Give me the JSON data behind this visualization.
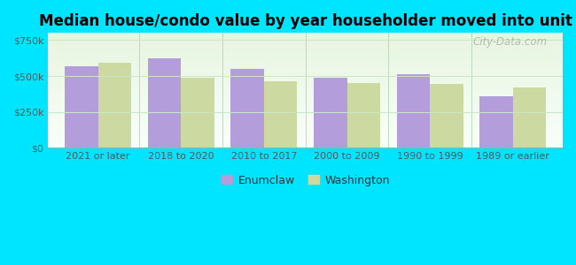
{
  "title": "Median house/condo value by year householder moved into unit",
  "categories": [
    "2021 or later",
    "2018 to 2020",
    "2010 to 2017",
    "2000 to 2009",
    "1990 to 1999",
    "1989 or earlier"
  ],
  "enumclaw_values": [
    570000,
    625000,
    550000,
    490000,
    515000,
    360000
  ],
  "washington_values": [
    590000,
    490000,
    462000,
    448000,
    443000,
    418000
  ],
  "enumclaw_color": "#b39ddb",
  "washington_color": "#ccd9a0",
  "background_color": "#00e5ff",
  "ylabel_ticks": [
    0,
    250000,
    500000,
    750000
  ],
  "ylabel_labels": [
    "$0",
    "$250k",
    "$500k",
    "$750k"
  ],
  "ylim": [
    0,
    800000
  ],
  "bar_width": 0.4,
  "legend_labels": [
    "Enumclaw",
    "Washington"
  ],
  "watermark": "City-Data.com",
  "title_fontsize": 12,
  "tick_fontsize": 8,
  "legend_fontsize": 9
}
